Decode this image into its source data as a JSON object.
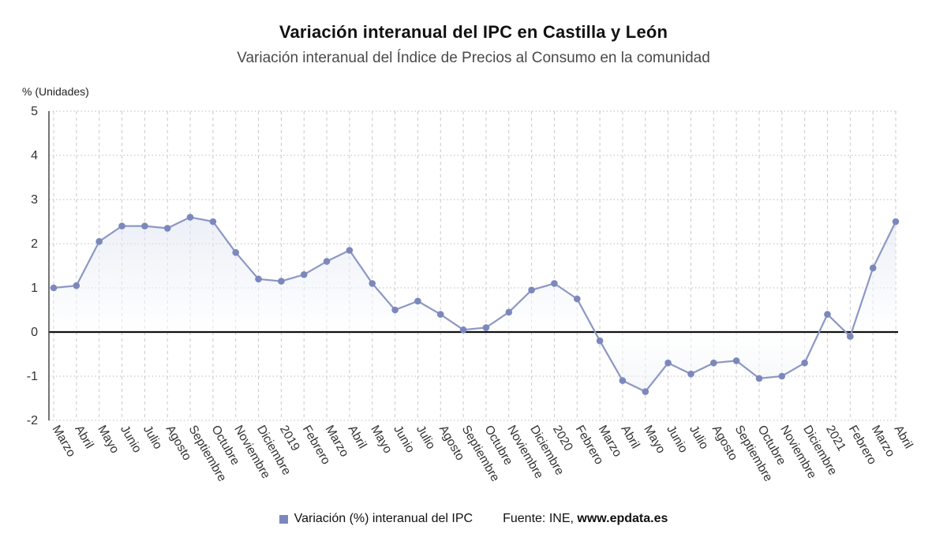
{
  "page": {
    "title": "Variación interanual del IPC en Castilla y León",
    "subtitle": "Variación interanual del Índice de Precios al Consumo en la comunidad",
    "y_axis_unit_label": "% (Unidades)"
  },
  "legend": {
    "series_label": "Variación (%) interanual del IPC",
    "source_prefix": "Fuente: INE, ",
    "source_site": "www.epdata.es"
  },
  "colors": {
    "line": "#8d97c5",
    "marker": "#7c88bc",
    "zero_axis": "#111111",
    "grid_dotted": "#b9b9b9",
    "grid_dashed": "#c9c9c9",
    "axis": "#3a3a3a",
    "area_top": "#dce3f0",
    "area_below": "#eef1f7",
    "tick_text": "#333333"
  },
  "chart_data": {
    "type": "line",
    "title": "Variación interanual del IPC en Castilla y León",
    "xlabel": "",
    "ylabel": "% (Unidades)",
    "ylim": [
      -2,
      5
    ],
    "ytick_step": 1,
    "grid": true,
    "legend_position": "bottom",
    "series_name": "Variación (%) interanual del IPC",
    "categories": [
      "Marzo",
      "Abril",
      "Mayo",
      "Junio",
      "Julio",
      "Agosto",
      "Septiembre",
      "Octubre",
      "Noviembre",
      "Diciembre",
      "2019",
      "Febrero",
      "Marzo",
      "Abril",
      "Mayo",
      "Junio",
      "Julio",
      "Agosto",
      "Septiembre",
      "Octubre",
      "Noviembre",
      "Diciembre",
      "2020",
      "Febrero",
      "Marzo",
      "Abril",
      "Mayo",
      "Junio",
      "Julio",
      "Agosto",
      "Septiembre",
      "Octubre",
      "Noviembre",
      "Diciembre",
      "2021",
      "Febrero",
      "Marzo",
      "Abril"
    ],
    "values": [
      1.0,
      1.05,
      2.05,
      2.4,
      2.4,
      2.35,
      2.6,
      2.5,
      1.8,
      1.2,
      1.15,
      1.3,
      1.6,
      1.85,
      1.1,
      0.5,
      0.7,
      0.4,
      0.05,
      0.1,
      0.45,
      0.95,
      1.1,
      0.75,
      -0.2,
      -1.1,
      -1.35,
      -0.7,
      -0.95,
      -0.7,
      -0.65,
      -1.05,
      -1.0,
      -0.7,
      0.4,
      -0.1,
      1.45,
      2.5
    ]
  }
}
